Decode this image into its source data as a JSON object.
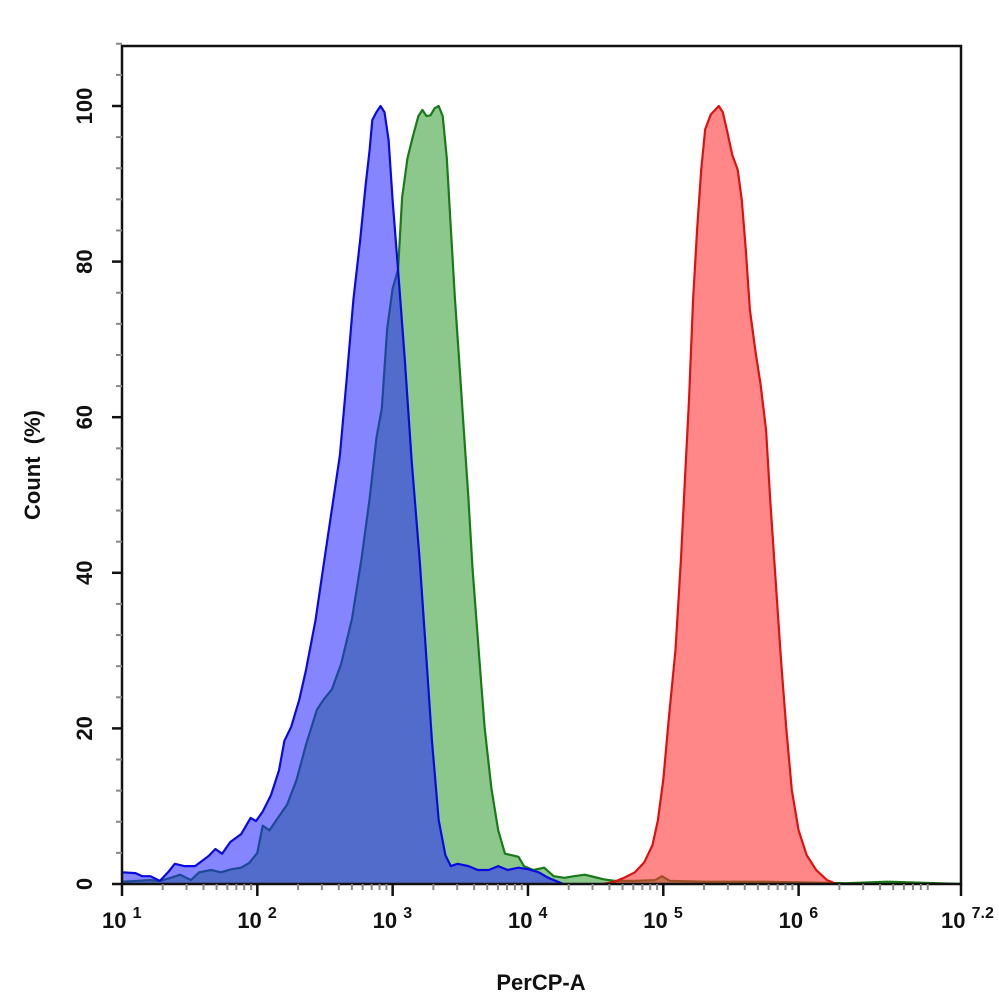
{
  "chart_data": {
    "type": "area",
    "title": "",
    "xlabel": "PerCP-A",
    "ylabel": "Count  (%)",
    "xscale": "log10",
    "xlim_log10": [
      1,
      7.2
    ],
    "ylim": [
      0,
      108.6
    ],
    "grid": false,
    "legend": null,
    "x_ticks": [
      {
        "base": "10",
        "exp": "1",
        "log": 1
      },
      {
        "base": "10",
        "exp": "2",
        "log": 2
      },
      {
        "base": "10",
        "exp": "3",
        "log": 3
      },
      {
        "base": "10",
        "exp": "4",
        "log": 4
      },
      {
        "base": "10",
        "exp": "5",
        "log": 5
      },
      {
        "base": "10",
        "exp": "6",
        "log": 6
      },
      {
        "base": "10",
        "exp": "7.2",
        "log": 7.2
      }
    ],
    "y_ticks": [
      0,
      20,
      40,
      60,
      80,
      100
    ],
    "series": [
      {
        "name": "green",
        "stroke": "#1a7a1a",
        "fill": "#2e9a2e",
        "fill_opacity": 0.55,
        "peak_log10": 3.34,
        "points": [
          [
            1.0,
            0.3
          ],
          [
            1.21,
            0.5
          ],
          [
            1.28,
            0.4
          ],
          [
            1.36,
            0.8
          ],
          [
            1.43,
            1.2
          ],
          [
            1.51,
            0.5
          ],
          [
            1.57,
            1.5
          ],
          [
            1.66,
            1.8
          ],
          [
            1.73,
            1.5
          ],
          [
            1.81,
            1.9
          ],
          [
            1.88,
            2.1
          ],
          [
            1.94,
            2.7
          ],
          [
            2.0,
            4.0
          ],
          [
            2.04,
            7.5
          ],
          [
            2.09,
            6.9
          ],
          [
            2.14,
            8.2
          ],
          [
            2.22,
            10.2
          ],
          [
            2.29,
            13.4
          ],
          [
            2.36,
            17.9
          ],
          [
            2.44,
            22.4
          ],
          [
            2.49,
            23.7
          ],
          [
            2.55,
            25.0
          ],
          [
            2.62,
            28.3
          ],
          [
            2.7,
            34.1
          ],
          [
            2.77,
            41.8
          ],
          [
            2.83,
            49.5
          ],
          [
            2.88,
            57.3
          ],
          [
            2.92,
            61.1
          ],
          [
            2.96,
            71.4
          ],
          [
            3.0,
            76.5
          ],
          [
            3.04,
            79.0
          ],
          [
            3.07,
            88.2
          ],
          [
            3.11,
            93.3
          ],
          [
            3.15,
            96.1
          ],
          [
            3.19,
            98.7
          ],
          [
            3.22,
            99.5
          ],
          [
            3.25,
            98.7
          ],
          [
            3.28,
            98.8
          ],
          [
            3.31,
            99.7
          ],
          [
            3.34,
            100.0
          ],
          [
            3.37,
            98.7
          ],
          [
            3.4,
            93.3
          ],
          [
            3.43,
            84.3
          ],
          [
            3.46,
            75.3
          ],
          [
            3.49,
            67.6
          ],
          [
            3.52,
            59.9
          ],
          [
            3.56,
            49.6
          ],
          [
            3.59,
            40.6
          ],
          [
            3.64,
            29.0
          ],
          [
            3.68,
            20.0
          ],
          [
            3.73,
            12.3
          ],
          [
            3.78,
            6.9
          ],
          [
            3.83,
            3.9
          ],
          [
            3.88,
            3.7
          ],
          [
            3.93,
            3.5
          ],
          [
            3.97,
            2.3
          ],
          [
            4.04,
            1.8
          ],
          [
            4.12,
            2.1
          ],
          [
            4.19,
            1.0
          ],
          [
            4.27,
            0.8
          ],
          [
            4.34,
            1.0
          ],
          [
            4.42,
            1.2
          ],
          [
            4.49,
            0.9
          ],
          [
            4.56,
            0.6
          ],
          [
            4.64,
            0.4
          ],
          [
            4.79,
            0.4
          ],
          [
            4.94,
            0.5
          ],
          [
            4.99,
            1.0
          ],
          [
            5.05,
            0.4
          ],
          [
            5.31,
            0.3
          ],
          [
            5.76,
            0.3
          ],
          [
            6.35,
            0.1
          ],
          [
            6.65,
            0.3
          ],
          [
            7.2,
            0.0
          ]
        ]
      },
      {
        "name": "blue",
        "stroke": "#0a0ae0",
        "fill": "#2020ff",
        "fill_opacity": 0.55,
        "peak_log10": 2.91,
        "points": [
          [
            1.0,
            1.5
          ],
          [
            1.1,
            1.4
          ],
          [
            1.15,
            1.0
          ],
          [
            1.21,
            1.0
          ],
          [
            1.28,
            0.4
          ],
          [
            1.34,
            1.5
          ],
          [
            1.39,
            2.6
          ],
          [
            1.46,
            2.3
          ],
          [
            1.54,
            2.3
          ],
          [
            1.64,
            3.6
          ],
          [
            1.69,
            4.5
          ],
          [
            1.74,
            3.9
          ],
          [
            1.8,
            5.4
          ],
          [
            1.88,
            6.4
          ],
          [
            1.95,
            8.5
          ],
          [
            1.99,
            8.1
          ],
          [
            2.04,
            9.3
          ],
          [
            2.1,
            11.4
          ],
          [
            2.16,
            14.6
          ],
          [
            2.2,
            18.4
          ],
          [
            2.25,
            20.2
          ],
          [
            2.31,
            23.7
          ],
          [
            2.36,
            27.5
          ],
          [
            2.43,
            33.9
          ],
          [
            2.49,
            41.0
          ],
          [
            2.55,
            48.1
          ],
          [
            2.61,
            55.1
          ],
          [
            2.66,
            64.8
          ],
          [
            2.71,
            75.1
          ],
          [
            2.76,
            82.8
          ],
          [
            2.8,
            89.8
          ],
          [
            2.83,
            94.3
          ],
          [
            2.85,
            98.2
          ],
          [
            2.88,
            99.2
          ],
          [
            2.91,
            100.0
          ],
          [
            2.94,
            99.2
          ],
          [
            2.97,
            95.6
          ],
          [
            3.0,
            87.9
          ],
          [
            3.04,
            78.9
          ],
          [
            3.09,
            67.4
          ],
          [
            3.14,
            54.5
          ],
          [
            3.2,
            41.6
          ],
          [
            3.25,
            28.8
          ],
          [
            3.29,
            18.5
          ],
          [
            3.34,
            8.2
          ],
          [
            3.39,
            3.7
          ],
          [
            3.43,
            2.3
          ],
          [
            3.48,
            2.6
          ],
          [
            3.56,
            2.3
          ],
          [
            3.63,
            1.8
          ],
          [
            3.71,
            1.8
          ],
          [
            3.78,
            2.3
          ],
          [
            3.85,
            1.8
          ],
          [
            3.93,
            2.1
          ],
          [
            4.0,
            1.9
          ],
          [
            4.08,
            1.5
          ],
          [
            4.15,
            0.8
          ],
          [
            4.26,
            0.0
          ]
        ]
      },
      {
        "name": "red",
        "stroke": "#dd1111",
        "fill": "#ff3030",
        "fill_opacity": 0.58,
        "peak_log10": 5.41,
        "points": [
          [
            4.56,
            0.0
          ],
          [
            4.64,
            0.3
          ],
          [
            4.71,
            0.8
          ],
          [
            4.79,
            1.5
          ],
          [
            4.86,
            2.8
          ],
          [
            4.92,
            5.0
          ],
          [
            4.96,
            8.2
          ],
          [
            5.0,
            13.4
          ],
          [
            5.04,
            21.1
          ],
          [
            5.09,
            30.1
          ],
          [
            5.13,
            41.6
          ],
          [
            5.16,
            51.9
          ],
          [
            5.19,
            62.2
          ],
          [
            5.22,
            75.1
          ],
          [
            5.25,
            84.1
          ],
          [
            5.28,
            91.8
          ],
          [
            5.31,
            97.0
          ],
          [
            5.35,
            98.9
          ],
          [
            5.41,
            100.0
          ],
          [
            5.44,
            99.2
          ],
          [
            5.47,
            96.9
          ],
          [
            5.51,
            93.7
          ],
          [
            5.55,
            91.8
          ],
          [
            5.58,
            87.9
          ],
          [
            5.61,
            81.5
          ],
          [
            5.64,
            73.8
          ],
          [
            5.68,
            68.6
          ],
          [
            5.72,
            64.1
          ],
          [
            5.76,
            58.3
          ],
          [
            5.79,
            49.4
          ],
          [
            5.83,
            39.1
          ],
          [
            5.87,
            28.8
          ],
          [
            5.91,
            19.8
          ],
          [
            5.95,
            12.1
          ],
          [
            6.0,
            6.9
          ],
          [
            6.06,
            3.7
          ],
          [
            6.13,
            1.8
          ],
          [
            6.21,
            0.5
          ],
          [
            6.28,
            0.0
          ]
        ]
      }
    ]
  }
}
